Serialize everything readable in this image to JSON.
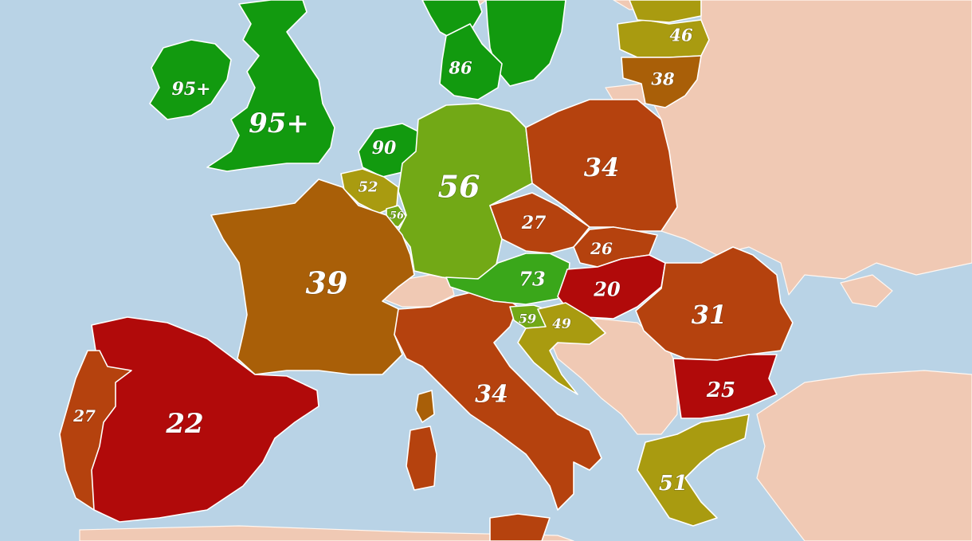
{
  "colors": {
    "sea": "#b9d3e6",
    "no_data": "#f0c9b4",
    "dark_green": "#129a0f",
    "green": "#3aa71a",
    "light_green": "#72a916",
    "olive": "#a99b10",
    "orange_brown": "#a95f08",
    "red_brown": "#b5420e",
    "red": "#b10a0a"
  },
  "countries": [
    {
      "id": "ireland",
      "value": "95+",
      "color": "#129a0f"
    },
    {
      "id": "united-kingdom",
      "value": "95+",
      "color": "#129a0f"
    },
    {
      "id": "norway",
      "value": "",
      "color": "#129a0f"
    },
    {
      "id": "sweden",
      "value": "",
      "color": "#129a0f"
    },
    {
      "id": "denmark",
      "value": "86",
      "color": "#129a0f"
    },
    {
      "id": "netherlands",
      "value": "90",
      "color": "#129a0f"
    },
    {
      "id": "belgium",
      "value": "52",
      "color": "#a99b10"
    },
    {
      "id": "luxembourg",
      "value": "56",
      "color": "#72a916"
    },
    {
      "id": "germany",
      "value": "56",
      "color": "#72a916"
    },
    {
      "id": "france",
      "value": "39",
      "color": "#a95f08"
    },
    {
      "id": "spain",
      "value": "22",
      "color": "#b10a0a"
    },
    {
      "id": "portugal",
      "value": "27",
      "color": "#b5420e"
    },
    {
      "id": "italy",
      "value": "34",
      "color": "#b5420e"
    },
    {
      "id": "poland",
      "value": "34",
      "color": "#b5420e"
    },
    {
      "id": "czechia",
      "value": "27",
      "color": "#b5420e"
    },
    {
      "id": "slovakia",
      "value": "26",
      "color": "#b5420e"
    },
    {
      "id": "austria",
      "value": "73",
      "color": "#3aa71a"
    },
    {
      "id": "hungary",
      "value": "20",
      "color": "#b10a0a"
    },
    {
      "id": "slovenia",
      "value": "59",
      "color": "#72a916"
    },
    {
      "id": "croatia",
      "value": "49",
      "color": "#a99b10"
    },
    {
      "id": "romania",
      "value": "31",
      "color": "#b5420e"
    },
    {
      "id": "bulgaria",
      "value": "25",
      "color": "#b10a0a"
    },
    {
      "id": "greece",
      "value": "51",
      "color": "#a99b10"
    },
    {
      "id": "latvia",
      "value": "46",
      "color": "#a99b10"
    },
    {
      "id": "lithuania",
      "value": "38",
      "color": "#a95f08"
    },
    {
      "id": "estonia",
      "value": "",
      "color": "#a99b10"
    }
  ]
}
